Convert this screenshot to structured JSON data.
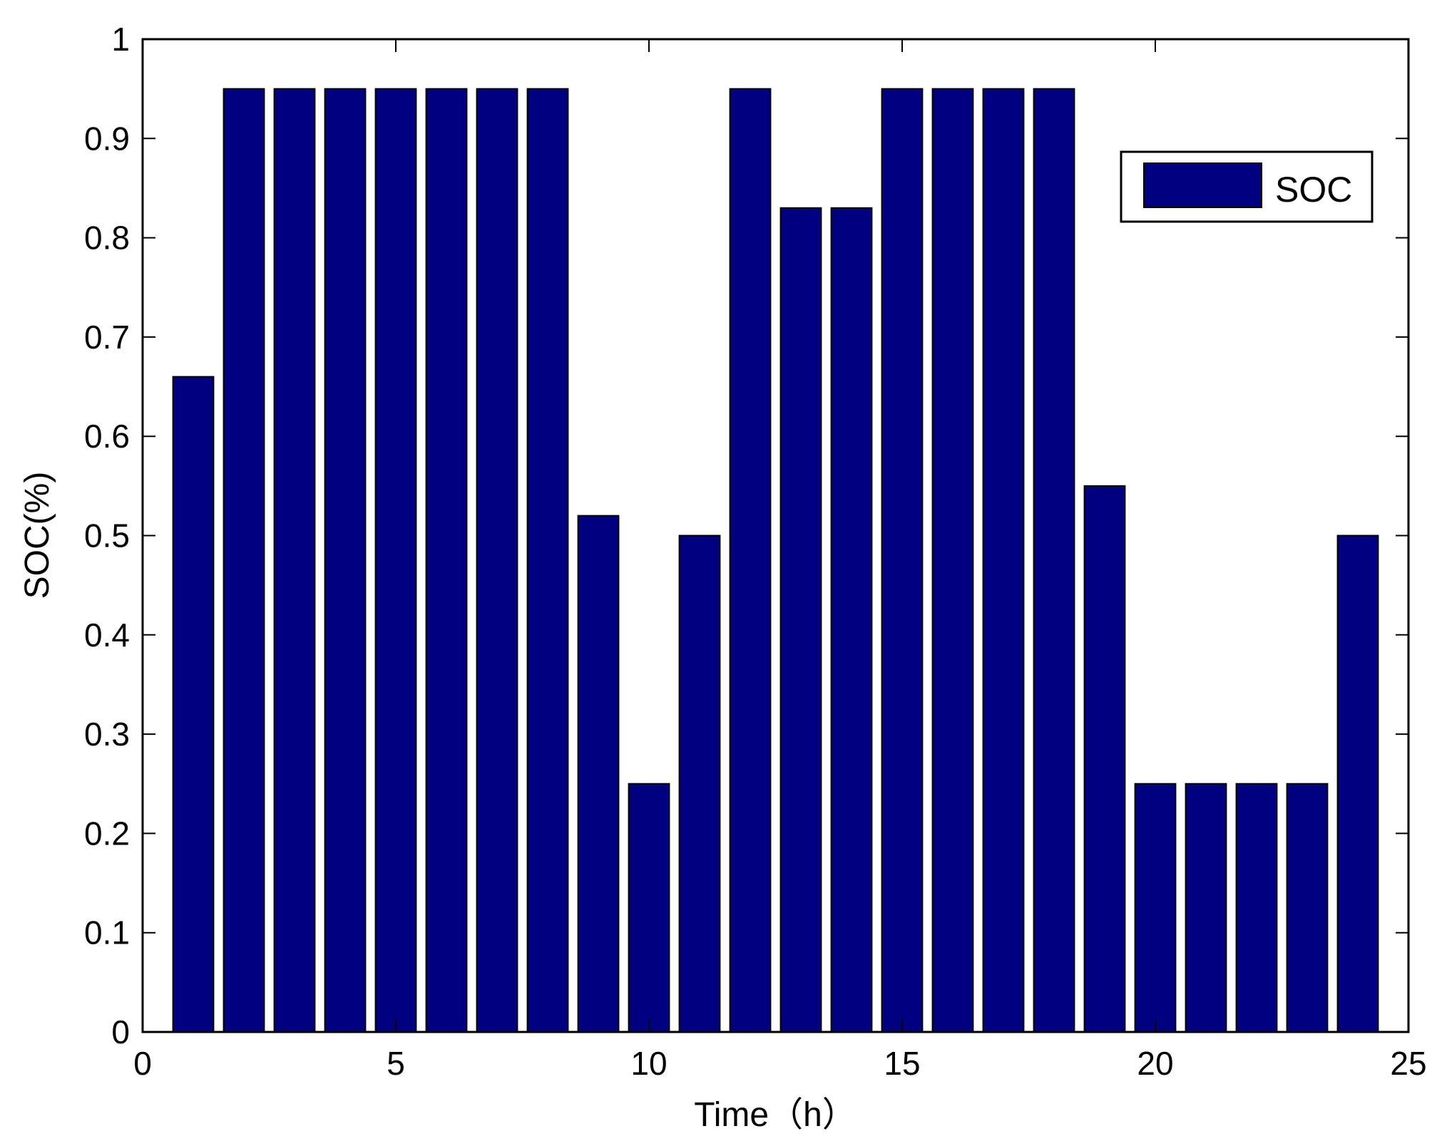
{
  "chart_data": {
    "type": "bar",
    "x": [
      1,
      2,
      3,
      4,
      5,
      6,
      7,
      8,
      9,
      10,
      11,
      12,
      13,
      14,
      15,
      16,
      17,
      18,
      19,
      20,
      21,
      22,
      23,
      24
    ],
    "series": [
      {
        "name": "SOC",
        "color": "#000080",
        "values": [
          0.66,
          0.95,
          0.95,
          0.95,
          0.95,
          0.95,
          0.95,
          0.95,
          0.52,
          0.25,
          0.5,
          0.95,
          0.83,
          0.83,
          0.95,
          0.95,
          0.95,
          0.95,
          0.55,
          0.25,
          0.25,
          0.25,
          0.25,
          0.5
        ]
      }
    ],
    "title": "",
    "xlabel": "Time（h）",
    "ylabel": "SOC(%)",
    "xlim": [
      0,
      25
    ],
    "ylim": [
      0,
      1
    ],
    "xticks": [
      "0",
      "5",
      "10",
      "15",
      "20",
      "25"
    ],
    "yticks": [
      "0",
      "0.1",
      "0.2",
      "0.3",
      "0.4",
      "0.5",
      "0.6",
      "0.7",
      "0.8",
      "0.9",
      "1"
    ],
    "grid": false,
    "legend": {
      "position": "top-right",
      "entries": [
        "SOC"
      ]
    }
  }
}
